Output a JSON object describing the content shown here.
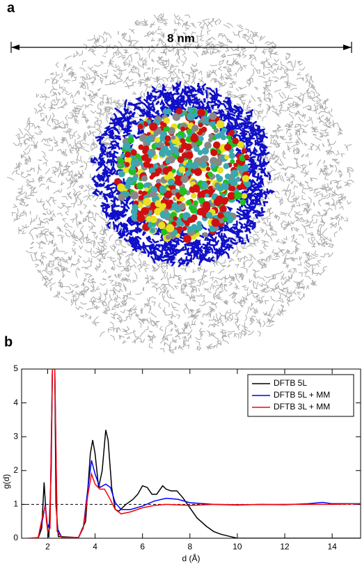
{
  "panel_a": {
    "label": "a",
    "scale_bar": "8 nm"
  },
  "panel_b_label": "b",
  "chart_data": {
    "type": "line",
    "x_label": "d (Å)",
    "y_label": "g(d)",
    "xlim": [
      0.9,
      15.2
    ],
    "ylim": [
      0,
      5
    ],
    "xticks": [
      2,
      4,
      6,
      8,
      10,
      12,
      14
    ],
    "yticks": [
      0,
      1,
      2,
      3,
      4,
      5
    ],
    "reference_line": {
      "y": 1
    },
    "legend": "upper right",
    "series": [
      {
        "name": "DFTB 5L",
        "color": "#000000",
        "x": [
          1.2,
          1.6,
          1.75,
          1.85,
          1.95,
          2.05,
          2.15,
          2.2,
          2.3,
          2.35,
          2.45,
          3.3,
          3.6,
          3.8,
          3.9,
          4.0,
          4.15,
          4.3,
          4.45,
          4.55,
          4.7,
          4.85,
          5.0,
          5.3,
          5.6,
          5.8,
          6.0,
          6.2,
          6.4,
          6.6,
          6.85,
          7.0,
          7.2,
          7.45,
          7.7,
          8.0,
          8.3,
          8.7,
          9.0,
          9.3,
          9.7,
          10.0,
          15.2
        ],
        "values": [
          0,
          0,
          0.3,
          1.65,
          0.5,
          0.02,
          2,
          5,
          5,
          1,
          0.05,
          0.02,
          0.5,
          2.5,
          2.9,
          2.5,
          1.5,
          2,
          3.2,
          2.9,
          1.5,
          0.85,
          0.8,
          1,
          1.15,
          1.3,
          1.55,
          1.5,
          1.3,
          1.3,
          1.55,
          1.45,
          1.4,
          1.4,
          1.2,
          0.9,
          0.6,
          0.35,
          0.2,
          0.12,
          0.05,
          0,
          0
        ]
      },
      {
        "name": "DFTB 5L + MM",
        "color": "#0000ff",
        "x": [
          1.2,
          1.6,
          1.8,
          1.9,
          2.0,
          2.1,
          2.2,
          2.3,
          2.4,
          2.6,
          3.3,
          3.5,
          3.7,
          3.85,
          4.0,
          4.2,
          4.45,
          4.65,
          4.85,
          5.1,
          5.5,
          6.0,
          6.5,
          7.0,
          7.5,
          8.0,
          9.0,
          10,
          11,
          12,
          13,
          13.6,
          14,
          15.2
        ],
        "values": [
          0,
          0.02,
          0.6,
          1.0,
          0.3,
          0.5,
          5,
          5,
          0.3,
          0.02,
          0.02,
          0.3,
          1.5,
          2.3,
          1.9,
          1.5,
          1.6,
          1.5,
          1.05,
          0.85,
          0.85,
          0.95,
          1.1,
          1.18,
          1.15,
          1.05,
          1.0,
          0.98,
          1.0,
          0.99,
          1.02,
          1.06,
          1.02,
          1.02
        ]
      },
      {
        "name": "DFTB 3L + MM",
        "color": "#ff0000",
        "x": [
          1.2,
          1.6,
          1.8,
          1.9,
          2.0,
          2.1,
          2.2,
          2.3,
          2.4,
          2.6,
          3.3,
          3.5,
          3.7,
          3.85,
          4.0,
          4.2,
          4.4,
          4.6,
          4.85,
          5.1,
          5.5,
          6.0,
          6.5,
          7,
          8,
          9,
          10,
          12,
          14,
          15.2
        ],
        "values": [
          0,
          0.02,
          0.7,
          0.95,
          0.2,
          0.3,
          5,
          5,
          0.2,
          0.02,
          0.02,
          0.3,
          1.3,
          1.9,
          1.6,
          1.45,
          1.45,
          1.2,
          0.85,
          0.72,
          0.78,
          0.9,
          0.97,
          1.0,
          0.97,
          1.0,
          0.99,
          1.0,
          1.0,
          1.02
        ]
      }
    ]
  }
}
